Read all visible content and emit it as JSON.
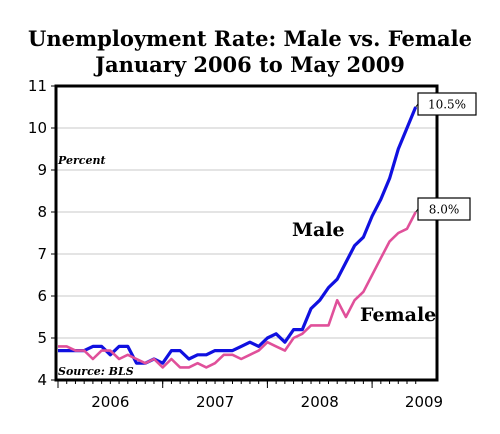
{
  "chart_data": {
    "type": "line",
    "title": "Unemployment Rate: Male vs. Female",
    "subtitle": "January 2006 to May 2009",
    "ylabel": "Percent",
    "source": "Source: BLS",
    "ylim": [
      4,
      11
    ],
    "yticks": [
      "4",
      "5",
      "6",
      "7",
      "8",
      "9",
      "10",
      "11"
    ],
    "xticks": [
      "2006",
      "2007",
      "2008",
      "2009"
    ],
    "x_start": "2006-01",
    "x_end": "2009-05",
    "grid": "horizontal",
    "series": [
      {
        "name": "Male",
        "color": "#1010e0",
        "end_label": "10.5%",
        "values": [
          4.7,
          4.7,
          4.7,
          4.7,
          4.8,
          4.8,
          4.6,
          4.8,
          4.8,
          4.4,
          4.4,
          4.5,
          4.4,
          4.7,
          4.7,
          4.5,
          4.6,
          4.6,
          4.7,
          4.7,
          4.7,
          4.8,
          4.9,
          4.8,
          5.0,
          5.1,
          4.9,
          5.2,
          5.2,
          5.7,
          5.9,
          6.2,
          6.4,
          6.8,
          7.2,
          7.4,
          7.9,
          8.3,
          8.8,
          9.5,
          10.0,
          10.5
        ]
      },
      {
        "name": "Female",
        "color": "#e0509a",
        "end_label": "8.0%",
        "values": [
          4.8,
          4.8,
          4.7,
          4.7,
          4.5,
          4.7,
          4.7,
          4.5,
          4.6,
          4.5,
          4.4,
          4.5,
          4.3,
          4.5,
          4.3,
          4.3,
          4.4,
          4.3,
          4.4,
          4.6,
          4.6,
          4.5,
          4.6,
          4.7,
          4.9,
          4.8,
          4.7,
          5.0,
          5.1,
          5.3,
          5.3,
          5.3,
          5.9,
          5.5,
          5.9,
          6.1,
          6.5,
          6.9,
          7.3,
          7.5,
          7.6,
          8.0
        ]
      }
    ]
  }
}
